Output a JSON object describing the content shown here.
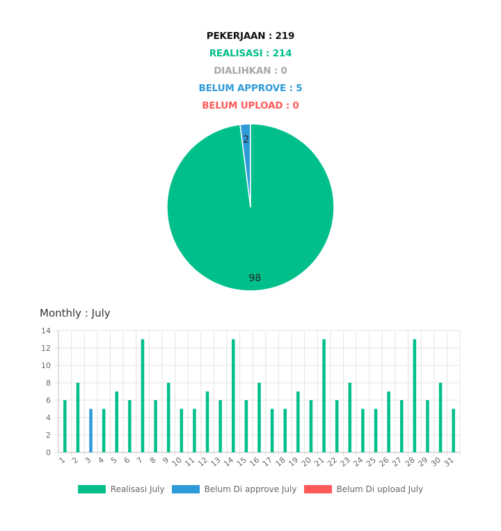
{
  "stats": {
    "pekerjaan": "PEKERJAAN : 219",
    "realisasi": "REALISASI : 214",
    "dialihkan": "DIALIHKAN : 0",
    "belum_approve": "BELUM APPROVE : 5",
    "belum_upload": "BELUM UPLOAD : 0"
  },
  "colors": {
    "realisasi": "#00bf8b",
    "approve": "#2f9ad8",
    "upload": "#ff5a5a",
    "dialihkan": "#a8a8a8",
    "grid": "#e4e4e4"
  },
  "monthly_title": "Monthly : July",
  "chart_data": [
    {
      "type": "pie",
      "labels": [
        "Realisasi",
        "Belum approve"
      ],
      "values": [
        98,
        2
      ],
      "data_labels": [
        "98",
        "2"
      ]
    },
    {
      "type": "bar",
      "title": "Monthly : July",
      "categories": [
        "1",
        "2",
        "3",
        "4",
        "5",
        "6",
        "7",
        "8",
        "9",
        "10",
        "11",
        "12",
        "13",
        "14",
        "15",
        "16",
        "17",
        "18",
        "19",
        "20",
        "21",
        "22",
        "23",
        "24",
        "25",
        "26",
        "27",
        "28",
        "29",
        "30",
        "31"
      ],
      "series": [
        {
          "name": "Realisasi July",
          "values": [
            6,
            8,
            0,
            5,
            7,
            6,
            13,
            6,
            8,
            5,
            5,
            7,
            6,
            13,
            6,
            8,
            5,
            5,
            7,
            6,
            13,
            6,
            8,
            5,
            5,
            7,
            6,
            13,
            6,
            8,
            5
          ]
        },
        {
          "name": "Belum Di approve July",
          "values": [
            0,
            0,
            5,
            0,
            0,
            0,
            0,
            0,
            0,
            0,
            0,
            0,
            0,
            0,
            0,
            0,
            0,
            0,
            0,
            0,
            0,
            0,
            0,
            0,
            0,
            0,
            0,
            0,
            0,
            0,
            0
          ]
        },
        {
          "name": "Belum Di upload July",
          "values": [
            0,
            0,
            0,
            0,
            0,
            0,
            0,
            0,
            0,
            0,
            0,
            0,
            0,
            0,
            0,
            0,
            0,
            0,
            0,
            0,
            0,
            0,
            0,
            0,
            0,
            0,
            0,
            0,
            0,
            0,
            0
          ]
        }
      ],
      "ylim": [
        0,
        14
      ],
      "yticks": [
        0,
        2,
        4,
        6,
        8,
        10,
        12,
        14
      ],
      "grid": true,
      "legend": "bottom"
    }
  ]
}
